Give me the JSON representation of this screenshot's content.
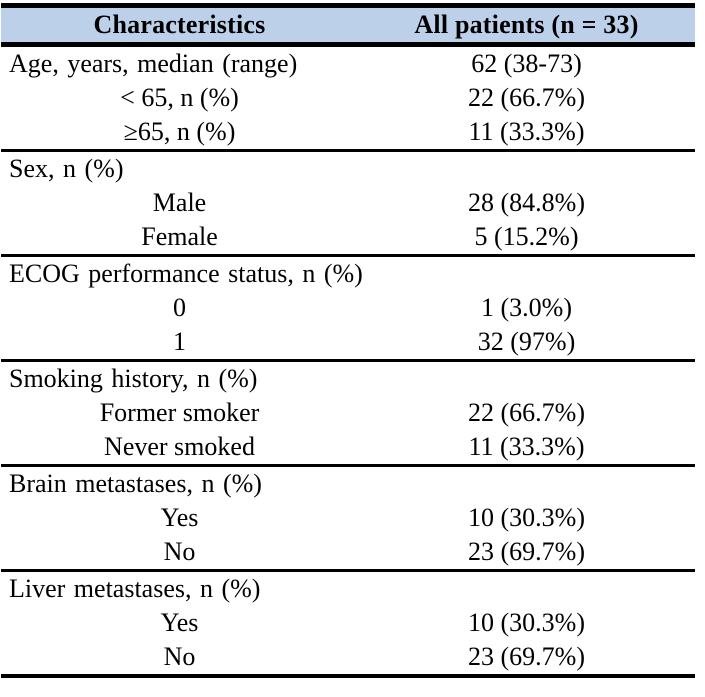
{
  "colors": {
    "header_bg": "#bdd0e9",
    "border": "#000000"
  },
  "header": {
    "characteristics": "Characteristics",
    "all_patients": "All patients (n = 33)"
  },
  "sections": [
    {
      "rows": [
        {
          "label": "Age, years, median (range)",
          "value": "62 (38-73)"
        },
        {
          "label": "< 65, n (%)",
          "value": "22 (66.7%)"
        },
        {
          "label": "≥65, n (%)",
          "value": "11 (33.3%)"
        }
      ]
    },
    {
      "rows": [
        {
          "label": "Sex, n (%)",
          "value": ""
        },
        {
          "label": "Male",
          "value": "28 (84.8%)"
        },
        {
          "label": "Female",
          "value": "5 (15.2%)"
        }
      ]
    },
    {
      "rows": [
        {
          "label": "ECOG performance status, n (%)",
          "value": ""
        },
        {
          "label": "0",
          "value": "1 (3.0%)"
        },
        {
          "label": "1",
          "value": "32 (97%)"
        }
      ]
    },
    {
      "rows": [
        {
          "label": "Smoking history, n (%)",
          "value": ""
        },
        {
          "label": "Former smoker",
          "value": "22 (66.7%)"
        },
        {
          "label": "Never smoked",
          "value": "11 (33.3%)"
        }
      ]
    },
    {
      "rows": [
        {
          "label": "Brain metastases, n (%)",
          "value": ""
        },
        {
          "label": "Yes",
          "value": "10 (30.3%)"
        },
        {
          "label": "No",
          "value": "23 (69.7%)"
        }
      ]
    },
    {
      "rows": [
        {
          "label": "Liver metastases, n (%)",
          "value": ""
        },
        {
          "label": "Yes",
          "value": "10 (30.3%)"
        },
        {
          "label": "No",
          "value": "23 (69.7%)"
        }
      ]
    }
  ],
  "chart_data": {
    "type": "table",
    "title": "",
    "columns": [
      "Characteristics",
      "All patients (n = 33)"
    ],
    "rows": [
      [
        "Age, years, median (range)",
        "62 (38-73)"
      ],
      [
        "< 65, n (%)",
        "22 (66.7%)"
      ],
      [
        "≥65, n (%)",
        "11 (33.3%)"
      ],
      [
        "Sex, n (%)",
        ""
      ],
      [
        "Male",
        "28 (84.8%)"
      ],
      [
        "Female",
        "5 (15.2%)"
      ],
      [
        "ECOG performance status, n (%)",
        ""
      ],
      [
        "0",
        "1 (3.0%)"
      ],
      [
        "1",
        "32 (97%)"
      ],
      [
        "Smoking history, n (%)",
        ""
      ],
      [
        "Former smoker",
        "22 (66.7%)"
      ],
      [
        "Never smoked",
        "11 (33.3%)"
      ],
      [
        "Brain metastases, n (%)",
        ""
      ],
      [
        "Yes",
        "10 (30.3%)"
      ],
      [
        "No",
        "23 (69.7%)"
      ],
      [
        "Liver metastases, n (%)",
        ""
      ],
      [
        "Yes",
        "10 (30.3%)"
      ],
      [
        "No",
        "23 (69.7%)"
      ]
    ]
  }
}
